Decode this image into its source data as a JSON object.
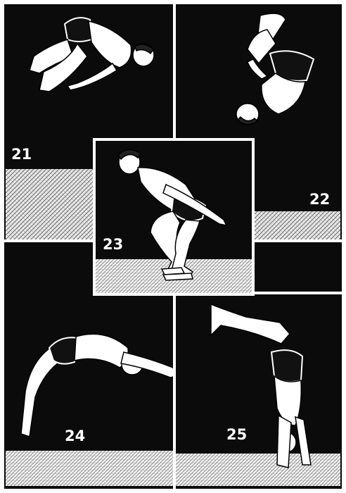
{
  "plate": {
    "palette": {
      "ink": "#0b0b0b",
      "paper": "#ffffff",
      "floor_hatch": "#cfcfcf"
    },
    "panels": [
      {
        "id": "21",
        "label": "21",
        "figure": "tuck-somersault-figure"
      },
      {
        "id": "22",
        "label": "22",
        "figure": "inverted-tuck-figure"
      },
      {
        "id": "23",
        "label": "23",
        "figure": "crouch-takeoff-figure"
      },
      {
        "id": "24",
        "label": "24",
        "figure": "back-arch-figure"
      },
      {
        "id": "25",
        "label": "25",
        "figure": "handstand-arch-figure"
      }
    ]
  }
}
